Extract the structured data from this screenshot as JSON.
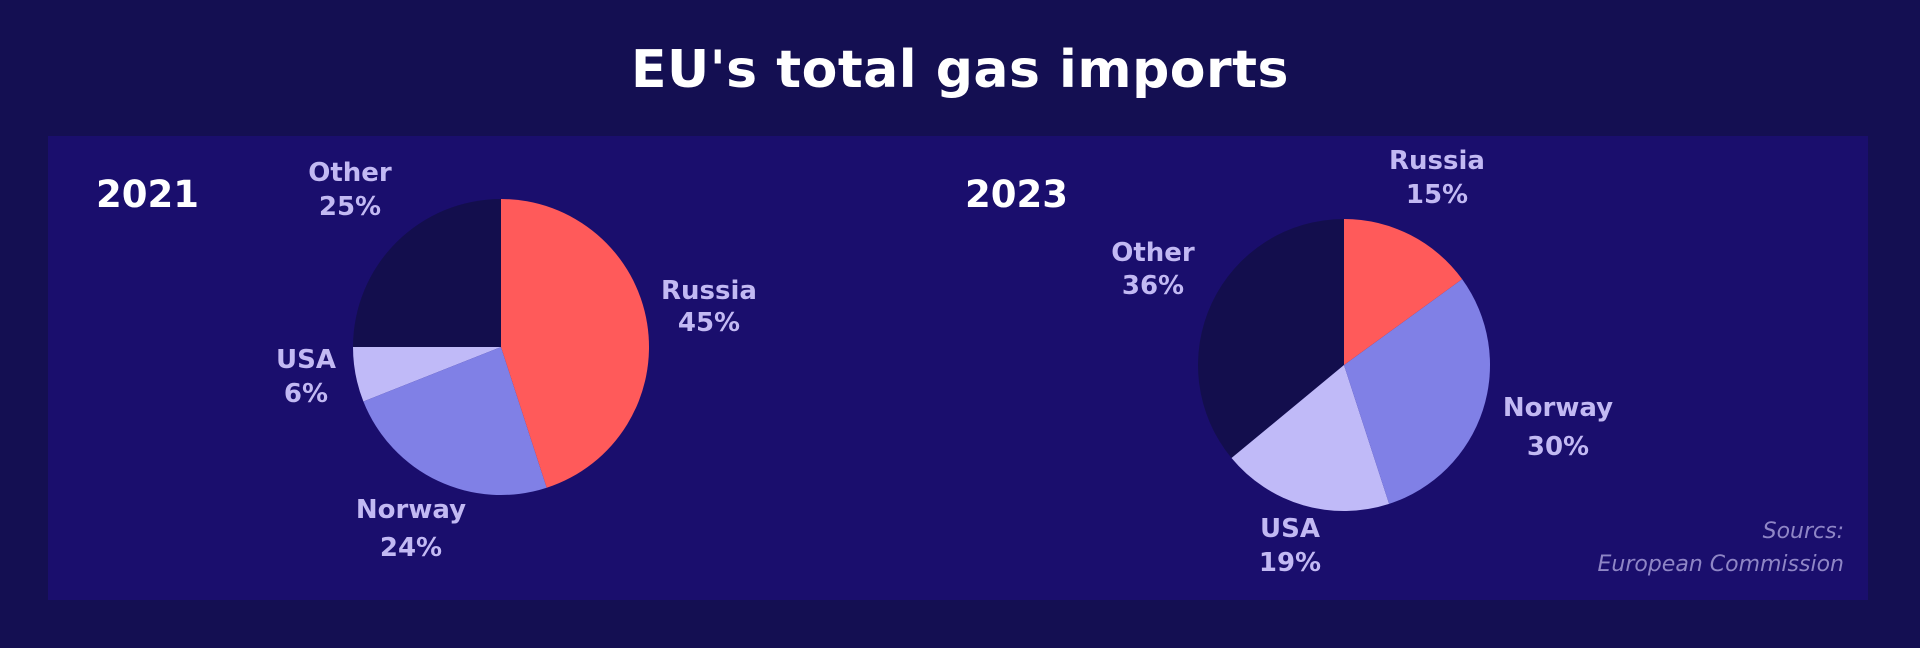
{
  "title": "EU's total gas imports",
  "source": {
    "line1": "Sourcs:",
    "line2": "European Commission"
  },
  "chart_data": [
    {
      "type": "pie",
      "title": "2021",
      "slices": [
        {
          "label": "Russia",
          "value": 45,
          "value_label": "45%",
          "color": "#ff5a5a"
        },
        {
          "label": "Norway",
          "value": 24,
          "value_label": "24%",
          "color": "#8080e6"
        },
        {
          "label": "USA",
          "value": 6,
          "value_label": "6%",
          "color": "#c0baf8"
        },
        {
          "label": "Other",
          "value": 25,
          "value_label": "25%",
          "color": "#130e4d"
        }
      ]
    },
    {
      "type": "pie",
      "title": "2023",
      "slices": [
        {
          "label": "Russia",
          "value": 15,
          "value_label": "15%",
          "color": "#ff5a5a"
        },
        {
          "label": "Norway",
          "value": 30,
          "value_label": "30%",
          "color": "#8080e6"
        },
        {
          "label": "USA",
          "value": 19,
          "value_label": "19%",
          "color": "#c0baf8"
        },
        {
          "label": "Other",
          "value": 36,
          "value_label": "36%",
          "color": "#130e4d"
        }
      ]
    }
  ]
}
